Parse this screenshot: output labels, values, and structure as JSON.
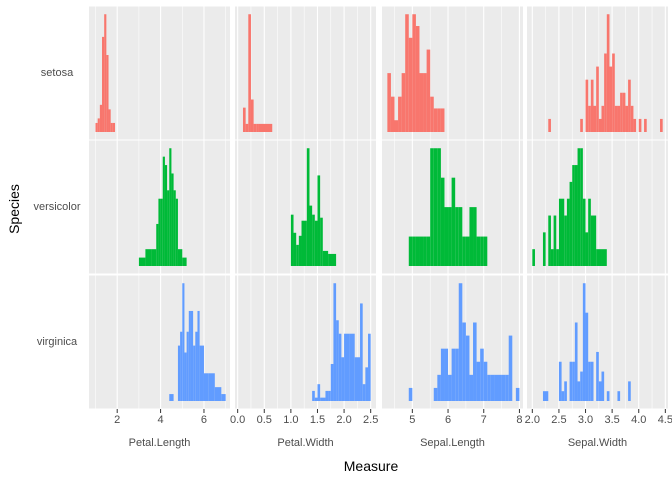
{
  "chart_data": {
    "type": "bar",
    "xlabel": "Measure",
    "ylabel": "Species",
    "species": [
      "setosa",
      "versicolor",
      "virginica"
    ],
    "measures": [
      {
        "name": "Petal.Length",
        "xlim": [
          0.7,
          7.2
        ],
        "ticks": [
          {
            "v": 2,
            "label": "2"
          },
          {
            "v": 4,
            "label": "4"
          },
          {
            "v": 6,
            "label": "6"
          }
        ],
        "bins": {
          "setosa": [
            [
              1.0,
              1.1,
              2
            ],
            [
              1.1,
              1.2,
              3
            ],
            [
              1.2,
              1.3,
              6
            ],
            [
              1.3,
              1.4,
              21
            ],
            [
              1.4,
              1.5,
              26
            ],
            [
              1.5,
              1.6,
              17
            ],
            [
              1.6,
              1.7,
              5
            ],
            [
              1.7,
              1.8,
              2
            ],
            [
              1.8,
              1.9,
              2
            ]
          ],
          "versicolor": [
            [
              3.0,
              3.3,
              1
            ],
            [
              3.3,
              3.6,
              2
            ],
            [
              3.6,
              3.8,
              2
            ],
            [
              3.8,
              3.9,
              5
            ],
            [
              3.9,
              4.0,
              8
            ],
            [
              4.0,
              4.1,
              8
            ],
            [
              4.1,
              4.2,
              13
            ],
            [
              4.2,
              4.3,
              12
            ],
            [
              4.3,
              4.4,
              9
            ],
            [
              4.4,
              4.5,
              14
            ],
            [
              4.5,
              4.6,
              11
            ],
            [
              4.6,
              4.7,
              9
            ],
            [
              4.7,
              4.8,
              8
            ],
            [
              4.8,
              5.0,
              2
            ],
            [
              5.0,
              5.2,
              1
            ]
          ],
          "virginica": [
            [
              4.4,
              4.6,
              1
            ],
            [
              4.8,
              4.9,
              8
            ],
            [
              4.9,
              5.0,
              10
            ],
            [
              5.0,
              5.1,
              17
            ],
            [
              5.1,
              5.2,
              7
            ],
            [
              5.2,
              5.3,
              10
            ],
            [
              5.3,
              5.4,
              13
            ],
            [
              5.4,
              5.5,
              13
            ],
            [
              5.5,
              5.6,
              8
            ],
            [
              5.6,
              5.7,
              10
            ],
            [
              5.7,
              5.8,
              13
            ],
            [
              5.8,
              6.0,
              8
            ],
            [
              6.0,
              6.2,
              4
            ],
            [
              6.2,
              6.5,
              4
            ],
            [
              6.5,
              6.8,
              2
            ],
            [
              6.8,
              7.0,
              1
            ]
          ]
        }
      },
      {
        "name": "Petal.Width",
        "xlim": [
          -0.05,
          2.6
        ],
        "ticks": [
          {
            "v": 0,
            "label": "0.0"
          },
          {
            "v": 0.5,
            "label": "0.5"
          },
          {
            "v": 1,
            "label": "1.0"
          },
          {
            "v": 1.5,
            "label": "1.5"
          },
          {
            "v": 2,
            "label": "2.0"
          },
          {
            "v": 2.5,
            "label": "2.5"
          }
        ],
        "bins": {
          "setosa": [
            [
              0.1,
              0.15,
              6
            ],
            [
              0.15,
              0.2,
              2
            ],
            [
              0.2,
              0.25,
              29
            ],
            [
              0.25,
              0.3,
              8
            ],
            [
              0.3,
              0.35,
              2
            ],
            [
              0.35,
              0.4,
              2
            ],
            [
              0.4,
              0.65,
              2
            ]
          ],
          "versicolor": [
            [
              1.0,
              1.05,
              17
            ],
            [
              1.05,
              1.1,
              11
            ],
            [
              1.1,
              1.15,
              7
            ],
            [
              1.15,
              1.2,
              10
            ],
            [
              1.2,
              1.3,
              15
            ],
            [
              1.3,
              1.35,
              39
            ],
            [
              1.35,
              1.4,
              20
            ],
            [
              1.4,
              1.45,
              17
            ],
            [
              1.45,
              1.5,
              15
            ],
            [
              1.5,
              1.55,
              30
            ],
            [
              1.55,
              1.6,
              16
            ],
            [
              1.6,
              1.7,
              5
            ],
            [
              1.7,
              1.85,
              4
            ]
          ],
          "virginica": [
            [
              1.4,
              1.45,
              3
            ],
            [
              1.45,
              1.5,
              1
            ],
            [
              1.5,
              1.55,
              5
            ],
            [
              1.55,
              1.65,
              1
            ],
            [
              1.65,
              1.7,
              3
            ],
            [
              1.7,
              1.75,
              3
            ],
            [
              1.75,
              1.8,
              11
            ],
            [
              1.8,
              1.85,
              35
            ],
            [
              1.85,
              1.9,
              24
            ],
            [
              1.9,
              1.95,
              20
            ],
            [
              1.95,
              2.0,
              13
            ],
            [
              2.0,
              2.1,
              20
            ],
            [
              2.1,
              2.2,
              20
            ],
            [
              2.2,
              2.3,
              13
            ],
            [
              2.3,
              2.35,
              29
            ],
            [
              2.35,
              2.4,
              5
            ],
            [
              2.4,
              2.45,
              10
            ],
            [
              2.45,
              2.5,
              20
            ]
          ]
        }
      },
      {
        "name": "Sepal.Length",
        "xlim": [
          4.15,
          8.1
        ],
        "ticks": [
          {
            "v": 5,
            "label": "5"
          },
          {
            "v": 6,
            "label": "6"
          },
          {
            "v": 7,
            "label": "7"
          },
          {
            "v": 8,
            "label": "8"
          }
        ],
        "bins": {
          "setosa": [
            [
              4.3,
              4.4,
              5
            ],
            [
              4.4,
              4.5,
              3
            ],
            [
              4.5,
              4.6,
              1
            ],
            [
              4.6,
              4.7,
              3
            ],
            [
              4.7,
              4.8,
              5
            ],
            [
              4.8,
              4.9,
              10
            ],
            [
              4.9,
              5.0,
              8
            ],
            [
              5.0,
              5.1,
              10
            ],
            [
              5.1,
              5.2,
              9
            ],
            [
              5.2,
              5.3,
              5
            ],
            [
              5.3,
              5.4,
              5
            ],
            [
              5.4,
              5.5,
              7
            ],
            [
              5.5,
              5.6,
              3
            ],
            [
              5.6,
              5.7,
              2
            ],
            [
              5.7,
              5.8,
              2
            ],
            [
              5.8,
              5.9,
              2
            ]
          ],
          "versicolor": [
            [
              4.9,
              5.0,
              2
            ],
            [
              5.0,
              5.1,
              2
            ],
            [
              5.1,
              5.2,
              2
            ],
            [
              5.2,
              5.3,
              2
            ],
            [
              5.3,
              5.4,
              2
            ],
            [
              5.4,
              5.5,
              2
            ],
            [
              5.5,
              5.6,
              8
            ],
            [
              5.6,
              5.7,
              8
            ],
            [
              5.7,
              5.8,
              8
            ],
            [
              5.8,
              5.9,
              6
            ],
            [
              5.9,
              6.0,
              4
            ],
            [
              6.0,
              6.1,
              4
            ],
            [
              6.1,
              6.2,
              6
            ],
            [
              6.2,
              6.3,
              4
            ],
            [
              6.3,
              6.4,
              4
            ],
            [
              6.4,
              6.5,
              2
            ],
            [
              6.5,
              6.6,
              2
            ],
            [
              6.6,
              6.7,
              4
            ],
            [
              6.7,
              6.8,
              4
            ],
            [
              6.8,
              6.9,
              2
            ],
            [
              6.9,
              7.0,
              2
            ],
            [
              7.0,
              7.1,
              2
            ]
          ],
          "virginica": [
            [
              4.9,
              5.0,
              1
            ],
            [
              5.6,
              5.7,
              1
            ],
            [
              5.7,
              5.8,
              2
            ],
            [
              5.8,
              5.9,
              4
            ],
            [
              5.9,
              6.0,
              4
            ],
            [
              6.0,
              6.1,
              2
            ],
            [
              6.1,
              6.2,
              4
            ],
            [
              6.2,
              6.3,
              4
            ],
            [
              6.3,
              6.4,
              9
            ],
            [
              6.4,
              6.5,
              6
            ],
            [
              6.5,
              6.6,
              5
            ],
            [
              6.6,
              6.7,
              2
            ],
            [
              6.7,
              6.8,
              6
            ],
            [
              6.8,
              6.9,
              3
            ],
            [
              6.9,
              7.0,
              4
            ],
            [
              7.0,
              7.1,
              3
            ],
            [
              7.1,
              7.2,
              2
            ],
            [
              7.2,
              7.3,
              2
            ],
            [
              7.3,
              7.4,
              2
            ],
            [
              7.4,
              7.5,
              2
            ],
            [
              7.5,
              7.6,
              2
            ],
            [
              7.6,
              7.7,
              2
            ],
            [
              7.7,
              7.8,
              5
            ],
            [
              7.9,
              8.0,
              1
            ]
          ]
        }
      },
      {
        "name": "Sepal.Width",
        "xlim": [
          1.9,
          4.55
        ],
        "ticks": [
          {
            "v": 2,
            "label": "2.0"
          },
          {
            "v": 2.5,
            "label": "2.5"
          },
          {
            "v": 3,
            "label": "3.0"
          },
          {
            "v": 3.5,
            "label": "3.5"
          },
          {
            "v": 4,
            "label": "4.0"
          },
          {
            "v": 4.5,
            "label": "4.5"
          }
        ],
        "bins": {
          "setosa": [
            [
              2.3,
              2.35,
              1
            ],
            [
              2.9,
              2.95,
              1
            ],
            [
              3.0,
              3.05,
              4
            ],
            [
              3.05,
              3.1,
              2
            ],
            [
              3.1,
              3.15,
              4
            ],
            [
              3.15,
              3.2,
              2
            ],
            [
              3.2,
              3.25,
              5
            ],
            [
              3.25,
              3.3,
              1
            ],
            [
              3.3,
              3.35,
              2
            ],
            [
              3.35,
              3.4,
              6
            ],
            [
              3.4,
              3.45,
              9
            ],
            [
              3.45,
              3.5,
              5
            ],
            [
              3.5,
              3.55,
              6
            ],
            [
              3.55,
              3.6,
              2
            ],
            [
              3.6,
              3.65,
              2
            ],
            [
              3.65,
              3.7,
              3
            ],
            [
              3.7,
              3.75,
              3
            ],
            [
              3.75,
              3.8,
              2
            ],
            [
              3.8,
              3.85,
              4
            ],
            [
              3.85,
              3.9,
              2
            ],
            [
              3.9,
              3.95,
              1
            ],
            [
              4.0,
              4.05,
              1
            ],
            [
              4.1,
              4.15,
              1
            ],
            [
              4.4,
              4.45,
              1
            ]
          ],
          "versicolor": [
            [
              2.0,
              2.05,
              1
            ],
            [
              2.2,
              2.25,
              2
            ],
            [
              2.3,
              2.35,
              3
            ],
            [
              2.35,
              2.4,
              1
            ],
            [
              2.4,
              2.45,
              3
            ],
            [
              2.45,
              2.5,
              1
            ],
            [
              2.5,
              2.6,
              4
            ],
            [
              2.6,
              2.65,
              3
            ],
            [
              2.65,
              2.7,
              4
            ],
            [
              2.7,
              2.75,
              5
            ],
            [
              2.75,
              2.8,
              6
            ],
            [
              2.8,
              2.85,
              6
            ],
            [
              2.85,
              2.9,
              7
            ],
            [
              2.9,
              2.95,
              7
            ],
            [
              2.95,
              3.0,
              4
            ],
            [
              3.0,
              3.05,
              2
            ],
            [
              3.05,
              3.1,
              4
            ],
            [
              3.1,
              3.2,
              3
            ],
            [
              3.2,
              3.3,
              1
            ],
            [
              3.3,
              3.4,
              1
            ]
          ],
          "virginica": [
            [
              2.2,
              2.3,
              1
            ],
            [
              2.5,
              2.55,
              4
            ],
            [
              2.55,
              2.6,
              1
            ],
            [
              2.6,
              2.65,
              2
            ],
            [
              2.7,
              2.75,
              4
            ],
            [
              2.75,
              2.8,
              4
            ],
            [
              2.8,
              2.85,
              8
            ],
            [
              2.85,
              2.9,
              2
            ],
            [
              2.9,
              2.95,
              3
            ],
            [
              2.95,
              3.0,
              12
            ],
            [
              3.0,
              3.05,
              9
            ],
            [
              3.05,
              3.1,
              4
            ],
            [
              3.1,
              3.15,
              4
            ],
            [
              3.2,
              3.25,
              5
            ],
            [
              3.25,
              3.3,
              2
            ],
            [
              3.3,
              3.35,
              3
            ],
            [
              3.4,
              3.45,
              1
            ],
            [
              3.6,
              3.65,
              1
            ],
            [
              3.8,
              3.85,
              2
            ]
          ]
        }
      }
    ],
    "colors": {
      "setosa": "#F8766D",
      "versicolor": "#00BA38",
      "virginica": "#619CFF"
    },
    "panel_background": "#EBEBEB",
    "grid_color": "#FFFFFF",
    "grid": true,
    "legend": "none"
  }
}
